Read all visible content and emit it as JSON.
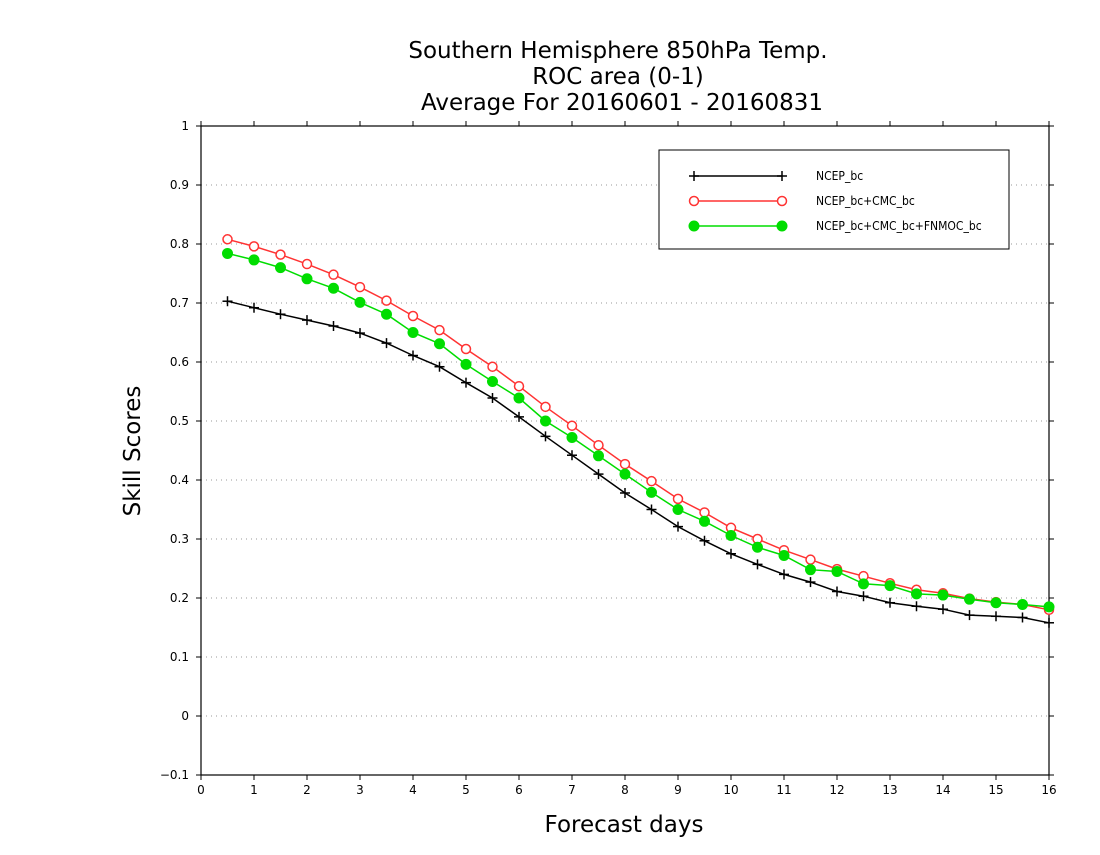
{
  "chart_data": {
    "type": "line",
    "title": [
      "Southern Hemisphere 850hPa Temp.",
      "ROC area (0-1)",
      "Average For 20160601 - 20160831"
    ],
    "xlabel": "Forecast days",
    "ylabel": "Skill Scores",
    "xlim": [
      0,
      16
    ],
    "ylim": [
      -0.1,
      1
    ],
    "xticks": [
      "0",
      "1",
      "2",
      "3",
      "4",
      "5",
      "6",
      "7",
      "8",
      "9",
      "10",
      "11",
      "12",
      "13",
      "14",
      "15",
      "16"
    ],
    "yticks": [
      "-0.1",
      "0",
      "0.1",
      "0.2",
      "0.3",
      "0.4",
      "0.5",
      "0.6",
      "0.7",
      "0.8",
      "0.9",
      "1"
    ],
    "grid": "horizontal dotted",
    "legend_position": "top-right",
    "x": [
      0.5,
      1,
      1.5,
      2,
      2.5,
      3,
      3.5,
      4,
      4.5,
      5,
      5.5,
      6,
      6.5,
      7,
      7.5,
      8,
      8.5,
      9,
      9.5,
      10,
      10.5,
      11,
      11.5,
      12,
      12.5,
      13,
      13.5,
      14,
      14.5,
      15,
      15.5,
      16
    ],
    "series": [
      {
        "name": "NCEP_bc",
        "color": "#000000",
        "marker": "plus",
        "values": [
          0.703,
          0.692,
          0.681,
          0.671,
          0.661,
          0.649,
          0.632,
          0.611,
          0.592,
          0.565,
          0.539,
          0.507,
          0.474,
          0.442,
          0.41,
          0.378,
          0.35,
          0.321,
          0.297,
          0.275,
          0.257,
          0.24,
          0.227,
          0.211,
          0.203,
          0.192,
          0.186,
          0.181,
          0.171,
          0.169,
          0.167,
          0.158
        ]
      },
      {
        "name": "NCEP_bc+CMC_bc",
        "color": "#ff3333",
        "marker": "open-circle",
        "values": [
          0.808,
          0.796,
          0.782,
          0.766,
          0.748,
          0.727,
          0.704,
          0.678,
          0.654,
          0.622,
          0.592,
          0.559,
          0.524,
          0.492,
          0.459,
          0.427,
          0.398,
          0.368,
          0.345,
          0.319,
          0.3,
          0.281,
          0.265,
          0.249,
          0.237,
          0.225,
          0.214,
          0.208,
          0.199,
          0.193,
          0.189,
          0.18
        ]
      },
      {
        "name": "NCEP_bc+CMC_bc+FNMOC_bc",
        "color": "#00dd00",
        "marker": "filled-circle",
        "values": [
          0.784,
          0.773,
          0.76,
          0.741,
          0.725,
          0.701,
          0.681,
          0.65,
          0.631,
          0.596,
          0.567,
          0.539,
          0.5,
          0.472,
          0.441,
          0.41,
          0.379,
          0.35,
          0.33,
          0.306,
          0.286,
          0.272,
          0.248,
          0.245,
          0.224,
          0.221,
          0.207,
          0.205,
          0.198,
          0.192,
          0.189,
          0.185
        ]
      }
    ]
  }
}
